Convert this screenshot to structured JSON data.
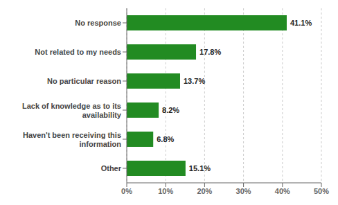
{
  "chart_data": {
    "type": "bar",
    "orientation": "horizontal",
    "categories": [
      "No response",
      "Not related to my needs",
      "No particular reason",
      "Lack of knowledge as to its\navailability",
      "Haven't been receiving this\ninformation",
      "Other"
    ],
    "values": [
      41.1,
      17.8,
      13.7,
      8.2,
      6.8,
      15.1
    ],
    "value_labels": [
      "41.1%",
      "17.8%",
      "13.7%",
      "8.2%",
      "6.8%",
      "15.1%"
    ],
    "color": "#228B22",
    "xlim": [
      0,
      50
    ],
    "xticks": [
      {
        "value": 0,
        "label": "0%"
      },
      {
        "value": 10,
        "label": "10%"
      },
      {
        "value": 20,
        "label": "20%"
      },
      {
        "value": 30,
        "label": "30%"
      },
      {
        "value": 40,
        "label": "40%"
      },
      {
        "value": 50,
        "label": "50%"
      }
    ],
    "grid": true,
    "data_labels": true
  }
}
